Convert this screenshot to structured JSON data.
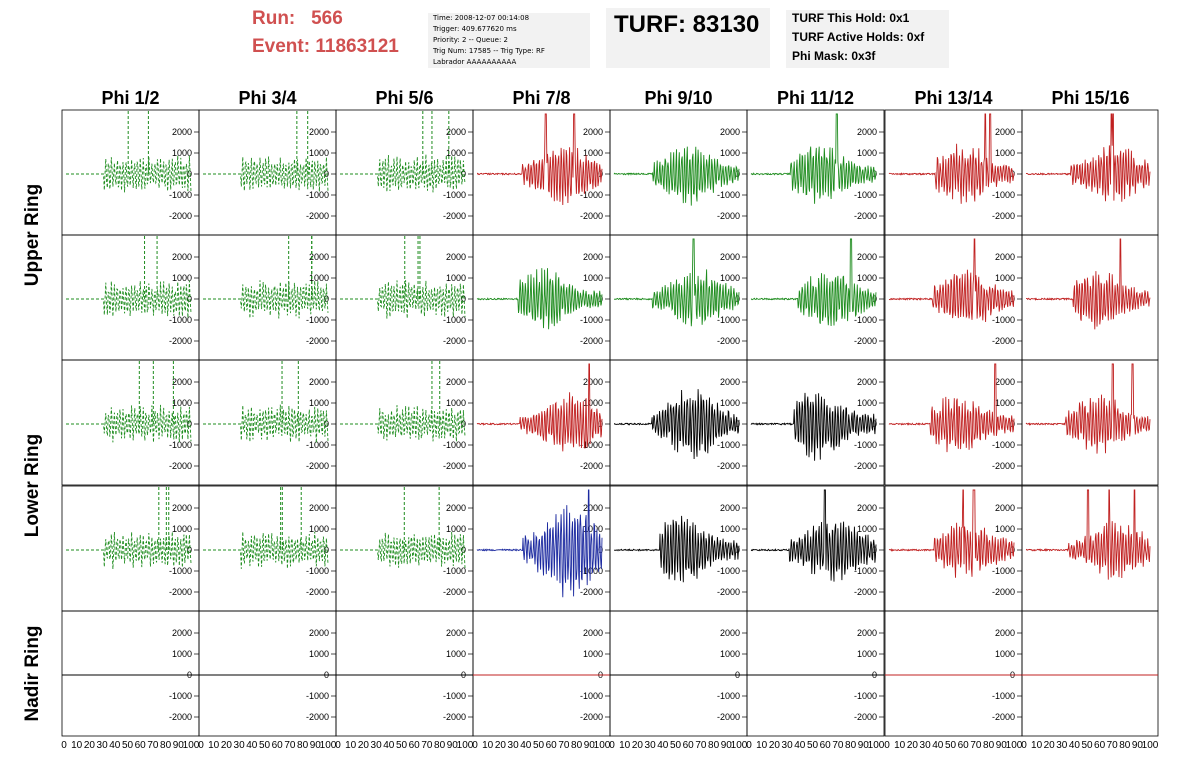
{
  "header": {
    "run_label": "Run:",
    "run_value": "566",
    "event_label": "Event:",
    "event_value": "11863121",
    "info_lines": [
      "Time: 2008-12-07 00:14:08",
      "Trigger: 409.677620 ms",
      "Priority: 2 -- Queue: 2",
      "Trig Num: 17585 -- Trig Type: RF",
      "Labrador AAAAAAAAAA"
    ],
    "turf_title": "TURF: 83130",
    "turf_lines": [
      "TURF This Hold: 0x1",
      "TURF Active Holds: 0xf",
      "Phi Mask: 0x3f"
    ]
  },
  "colors": {
    "title_red": "#d05050",
    "wave_green": "#1e8c1e",
    "wave_red": "#c02020",
    "wave_black": "#000000",
    "wave_blue": "#1c2aa0",
    "panel_border": "#000000"
  },
  "phi_headers": [
    "Phi 1/2",
    "Phi 3/4",
    "Phi 5/6",
    "Phi 7/8",
    "Phi 9/10",
    "Phi 11/12",
    "Phi 13/14",
    "Phi 15/16"
  ],
  "ring_labels": [
    "Upper Ring",
    "Lower Ring",
    "Nadir Ring"
  ],
  "y_tick_labels": [
    "2000",
    "1000",
    "0",
    "-1000",
    "-2000"
  ],
  "y_tick_values": [
    2000,
    1000,
    0,
    -1000,
    -2000
  ],
  "x_tick_labels": [
    "0",
    "10",
    "20",
    "30",
    "40",
    "50",
    "60",
    "70",
    "80",
    "90",
    "100"
  ],
  "panels": [
    [
      "green",
      "green",
      "green",
      "red",
      "green",
      "green",
      "red",
      "red"
    ],
    [
      "green",
      "green",
      "green",
      "green",
      "green",
      "green",
      "red",
      "red"
    ],
    [
      "green",
      "green",
      "green",
      "red",
      "black",
      "black",
      "red",
      "red"
    ],
    [
      "green",
      "green",
      "green",
      "blue",
      "black",
      "black",
      "red",
      "red"
    ],
    [
      "black",
      "black",
      "black",
      "red",
      "black",
      "black",
      "red",
      "red"
    ]
  ],
  "dashed_columns": [
    0,
    1,
    2
  ]
}
